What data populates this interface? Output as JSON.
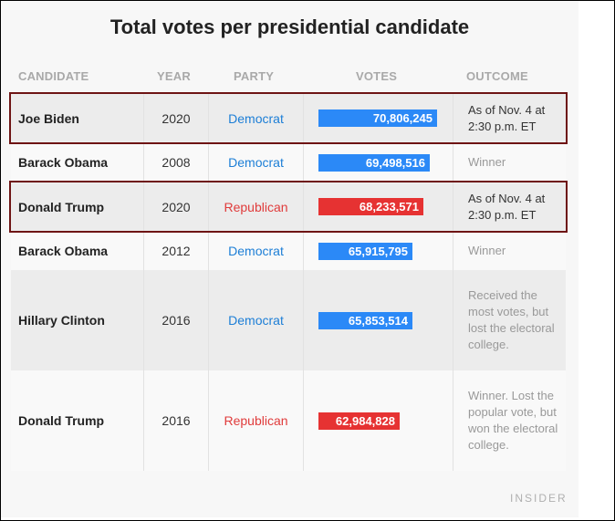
{
  "title": "Total votes per presidential candidate",
  "headers": {
    "candidate": "CANDIDATE",
    "year": "YEAR",
    "party": "PARTY",
    "votes": "VOTES",
    "outcome": "OUTCOME"
  },
  "rows": [
    {
      "candidate": "Joe Biden",
      "year": "2020",
      "party": "Democrat",
      "votes": "70,806,245",
      "outcome": "As of Nov. 4 at 2:30 p.m. ET"
    },
    {
      "candidate": "Barack Obama",
      "year": "2008",
      "party": "Democrat",
      "votes": "69,498,516",
      "outcome": "Winner"
    },
    {
      "candidate": "Donald Trump",
      "year": "2020",
      "party": "Republican",
      "votes": "68,233,571",
      "outcome": "As of Nov. 4 at 2:30 p.m. ET"
    },
    {
      "candidate": "Barack Obama",
      "year": "2012",
      "party": "Democrat",
      "votes": "65,915,795",
      "outcome": "Winner"
    },
    {
      "candidate": "Hillary Clinton",
      "year": "2016",
      "party": "Democrat",
      "votes": "65,853,514",
      "outcome": "Received the most votes, but lost the electoral college."
    },
    {
      "candidate": "Donald Trump",
      "year": "2016",
      "party": "Republican",
      "votes": "62,984,828",
      "outcome": "Winner. Lost the popular vote, but won the electoral college."
    }
  ],
  "colors": {
    "democrat": "#2b89f7",
    "republican": "#e63232",
    "highlight": "#6e1414"
  },
  "source": "INSIDER",
  "chart_data": {
    "type": "table",
    "title": "Total votes per presidential candidate",
    "columns": [
      "CANDIDATE",
      "YEAR",
      "PARTY",
      "VOTES",
      "OUTCOME"
    ],
    "categories": [
      "Joe Biden",
      "Barack Obama",
      "Donald Trump",
      "Barack Obama",
      "Hillary Clinton",
      "Donald Trump"
    ],
    "values": [
      70806245,
      69498516,
      68233571,
      65915795,
      65853514,
      62984828
    ],
    "highlighted_rows": [
      0,
      2
    ]
  }
}
